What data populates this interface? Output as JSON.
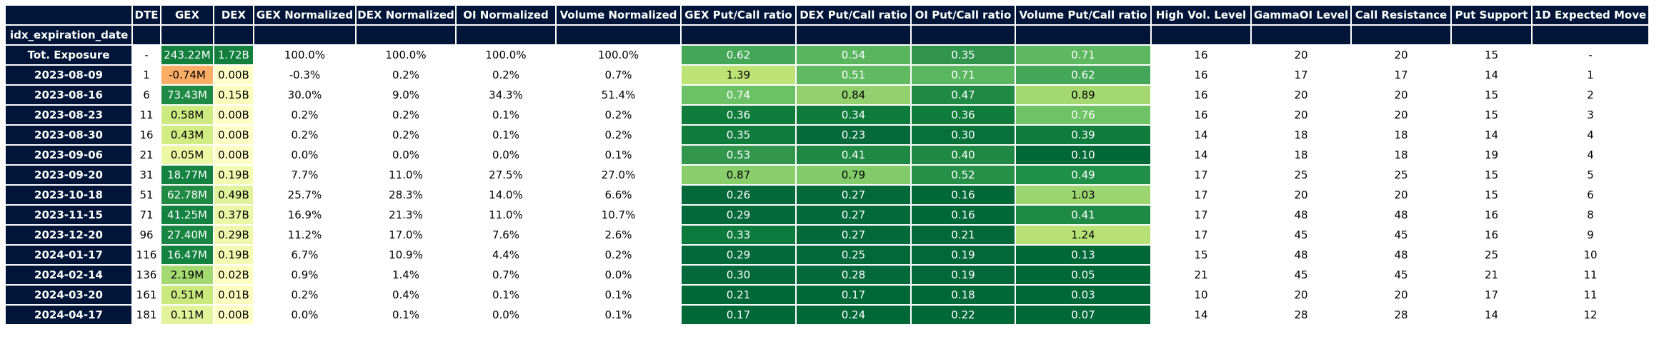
{
  "chart_data": {
    "type": "table",
    "index_label": "idx_expiration_date",
    "columns": [
      "DTE",
      "GEX",
      "DEX",
      "GEX Normalized",
      "DEX Normalized",
      "OI Normalized",
      "Volume Normalized",
      "GEX Put/Call ratio",
      "DEX Put/Call ratio",
      "OI Put/Call ratio",
      "Volume Put/Call ratio",
      "High Vol. Level",
      "GammaOI Level",
      "Call Resistance",
      "Put Support",
      "1D Expected Move"
    ],
    "rows": [
      {
        "idx": "Tot. Exposure",
        "values": [
          "-",
          "243.22M",
          "1.72B",
          "100.0%",
          "100.0%",
          "100.0%",
          "100.0%",
          "0.62",
          "0.54",
          "0.35",
          "0.71",
          "16",
          "20",
          "20",
          "15",
          "-"
        ]
      },
      {
        "idx": "2023-08-09",
        "values": [
          "1",
          "-0.74M",
          "0.00B",
          "-0.3%",
          "0.2%",
          "0.2%",
          "0.7%",
          "1.39",
          "0.51",
          "0.71",
          "0.62",
          "16",
          "17",
          "17",
          "14",
          "1"
        ]
      },
      {
        "idx": "2023-08-16",
        "values": [
          "6",
          "73.43M",
          "0.15B",
          "30.0%",
          "9.0%",
          "34.3%",
          "51.4%",
          "0.74",
          "0.84",
          "0.47",
          "0.89",
          "16",
          "20",
          "20",
          "15",
          "2"
        ]
      },
      {
        "idx": "2023-08-23",
        "values": [
          "11",
          "0.58M",
          "0.00B",
          "0.2%",
          "0.2%",
          "0.1%",
          "0.2%",
          "0.36",
          "0.34",
          "0.36",
          "0.76",
          "16",
          "20",
          "20",
          "15",
          "3"
        ]
      },
      {
        "idx": "2023-08-30",
        "values": [
          "16",
          "0.43M",
          "0.00B",
          "0.2%",
          "0.2%",
          "0.1%",
          "0.2%",
          "0.35",
          "0.23",
          "0.30",
          "0.39",
          "14",
          "18",
          "18",
          "14",
          "4"
        ]
      },
      {
        "idx": "2023-09-06",
        "values": [
          "21",
          "0.05M",
          "0.00B",
          "0.0%",
          "0.0%",
          "0.0%",
          "0.1%",
          "0.53",
          "0.41",
          "0.40",
          "0.10",
          "14",
          "18",
          "18",
          "19",
          "4"
        ]
      },
      {
        "idx": "2023-09-20",
        "values": [
          "31",
          "18.77M",
          "0.19B",
          "7.7%",
          "11.0%",
          "27.5%",
          "27.0%",
          "0.87",
          "0.79",
          "0.52",
          "0.49",
          "17",
          "25",
          "25",
          "15",
          "5"
        ]
      },
      {
        "idx": "2023-10-18",
        "values": [
          "51",
          "62.78M",
          "0.49B",
          "25.7%",
          "28.3%",
          "14.0%",
          "6.6%",
          "0.26",
          "0.27",
          "0.16",
          "1.03",
          "17",
          "20",
          "20",
          "15",
          "6"
        ]
      },
      {
        "idx": "2023-11-15",
        "values": [
          "71",
          "41.25M",
          "0.37B",
          "16.9%",
          "21.3%",
          "11.0%",
          "10.7%",
          "0.29",
          "0.27",
          "0.16",
          "0.41",
          "17",
          "48",
          "48",
          "16",
          "8"
        ]
      },
      {
        "idx": "2023-12-20",
        "values": [
          "96",
          "27.40M",
          "0.29B",
          "11.2%",
          "17.0%",
          "7.6%",
          "2.6%",
          "0.33",
          "0.27",
          "0.21",
          "1.24",
          "17",
          "45",
          "45",
          "16",
          "9"
        ]
      },
      {
        "idx": "2024-01-17",
        "values": [
          "116",
          "16.47M",
          "0.19B",
          "6.7%",
          "10.9%",
          "4.4%",
          "0.2%",
          "0.29",
          "0.25",
          "0.19",
          "0.13",
          "15",
          "48",
          "48",
          "25",
          "10"
        ]
      },
      {
        "idx": "2024-02-14",
        "values": [
          "136",
          "2.19M",
          "0.02B",
          "0.9%",
          "1.4%",
          "0.7%",
          "0.0%",
          "0.30",
          "0.28",
          "0.19",
          "0.05",
          "21",
          "45",
          "45",
          "21",
          "11"
        ]
      },
      {
        "idx": "2024-03-20",
        "values": [
          "161",
          "0.51M",
          "0.01B",
          "0.2%",
          "0.4%",
          "0.1%",
          "0.1%",
          "0.21",
          "0.17",
          "0.18",
          "0.03",
          "10",
          "20",
          "20",
          "17",
          "11"
        ]
      },
      {
        "idx": "2024-04-17",
        "values": [
          "181",
          "0.11M",
          "0.00B",
          "0.0%",
          "0.1%",
          "0.0%",
          "0.1%",
          "0.17",
          "0.24",
          "0.22",
          "0.07",
          "14",
          "28",
          "28",
          "14",
          "12"
        ]
      }
    ],
    "cell_colors": [
      [
        "",
        "#127f3e",
        "#127f3e",
        "",
        "",
        "",
        "",
        "#44a657",
        "#59b65f",
        "#30944c",
        "#5db861"
      ],
      [
        "",
        "#fcae66",
        "#fffec6",
        "",
        "",
        "",
        "",
        "#bde374",
        "#5fba61",
        "#5ab65f",
        "#44a657"
      ],
      [
        "",
        "#1f8a45",
        "#fbfdbd",
        "",
        "",
        "",
        "",
        "#6cc166",
        "#92d06d",
        "#208a45",
        "#a4d971"
      ],
      [
        "",
        "#ccea80",
        "#fffec6",
        "",
        "",
        "",
        "",
        "#0f7c3c",
        "#0e7a3b",
        "#0f7c3c",
        "#6fc366"
      ],
      [
        "",
        "#d0ec82",
        "#fffec6",
        "",
        "",
        "",
        "",
        "#0f7b3c",
        "#05693a",
        "#077139",
        "#0f7b3c"
      ],
      [
        "",
        "#ecf8a3",
        "#fffec6",
        "",
        "",
        "",
        "",
        "#33964d",
        "#1e8844",
        "#1e8844",
        "#006837"
      ],
      [
        "",
        "#148240",
        "#f3fab1",
        "",
        "",
        "",
        "",
        "#8ace6c",
        "#82cb6b",
        "#269048",
        "#209048"
      ],
      [
        "",
        "#208a45",
        "#e0f29a",
        "",
        "",
        "",
        "",
        "#04683a",
        "#04693a",
        "#006837",
        "#9cd56f"
      ],
      [
        "",
        "#148240",
        "#eaf7a7",
        "",
        "",
        "",
        "",
        "#04693a",
        "#04693a",
        "#006837",
        "#1f8a45"
      ],
      [
        "",
        "#198743",
        "#eef8ac",
        "",
        "",
        "",
        "",
        "#0c7a3c",
        "#04693a",
        "#026839",
        "#b7e076"
      ],
      [
        "",
        "#148240",
        "#f3fab1",
        "",
        "",
        "",
        "",
        "#04693a",
        "#026839",
        "#026839",
        "#006837"
      ],
      [
        "",
        "#a4d971",
        "#fdfdbf",
        "",
        "",
        "",
        "",
        "#04693a",
        "#04693a",
        "#026839",
        "#006837"
      ],
      [
        "",
        "#c9e87e",
        "#fdfdbf",
        "",
        "",
        "",
        "",
        "#006837",
        "#006837",
        "#006837",
        "#006837"
      ],
      [
        "",
        "#e2f39c",
        "#fffec6",
        "",
        "",
        "",
        "",
        "#006837",
        "#006837",
        "#006837",
        "#006837"
      ]
    ]
  }
}
